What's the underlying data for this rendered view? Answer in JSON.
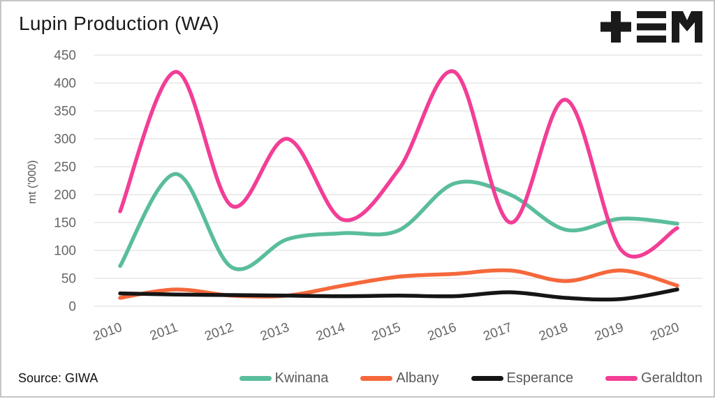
{
  "header": {
    "logo_name": "tem-logo",
    "logo_color": "#1a1a1a"
  },
  "footer": {
    "source": "Source: GIWA"
  },
  "colors": {
    "grid": "#e0e0e0",
    "axis_text": "#666666",
    "title_text": "#1a1a1a",
    "frame_border": "#c6c6c6"
  },
  "chart_data": {
    "type": "line",
    "title": "Lupin Production (WA)",
    "xlabel": "",
    "ylabel": "mt ('000)",
    "ylim": [
      0,
      450
    ],
    "yticks": [
      0,
      50,
      100,
      150,
      200,
      250,
      300,
      350,
      400,
      450
    ],
    "grid": "horizontal",
    "smoothing": "spline",
    "legend_position": "bottom-right",
    "categories": [
      "2010",
      "2011",
      "2012",
      "2013",
      "2014",
      "2015",
      "2016",
      "2017",
      "2018",
      "2019",
      "2020"
    ],
    "series": [
      {
        "name": "Kwinana",
        "color": "#5abd9c",
        "values": [
          72,
          237,
          70,
          120,
          131,
          136,
          220,
          200,
          137,
          157,
          148
        ]
      },
      {
        "name": "Albany",
        "color": "#f5683c",
        "values": [
          15,
          30,
          19,
          19,
          37,
          53,
          58,
          64,
          45,
          64,
          37
        ]
      },
      {
        "name": "Esperance",
        "color": "#151515",
        "values": [
          23,
          21,
          20,
          19,
          18,
          19,
          18,
          25,
          15,
          13,
          30
        ]
      },
      {
        "name": "Geraldton",
        "color": "#f23e96",
        "values": [
          170,
          420,
          180,
          300,
          155,
          245,
          420,
          150,
          370,
          100,
          140
        ]
      }
    ]
  }
}
